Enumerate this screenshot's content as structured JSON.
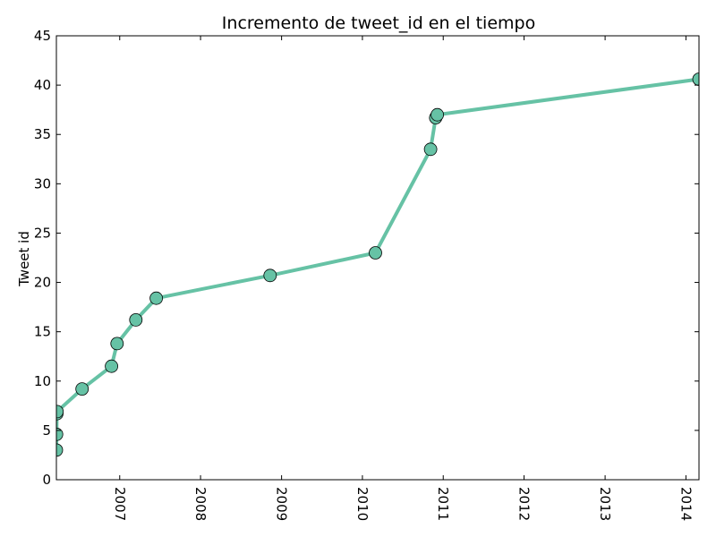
{
  "chart_data": {
    "type": "line",
    "title": "Incremento de tweet_id en el tiempo",
    "xlabel": "",
    "ylabel": "Tweet id",
    "x_axis_type": "date",
    "xlim": [
      "2006-03-21",
      "2014-03-01"
    ],
    "ylim": [
      0,
      45
    ],
    "x_tick_labels": [
      "2007",
      "2008",
      "2009",
      "2010",
      "2011",
      "2012",
      "2013",
      "2014"
    ],
    "x_tick_values": [
      "2007-01-01",
      "2008-01-01",
      "2009-01-01",
      "2010-01-01",
      "2011-01-01",
      "2012-01-01",
      "2013-01-01",
      "2014-01-01"
    ],
    "y_ticks": [
      0,
      5,
      10,
      15,
      20,
      25,
      30,
      35,
      40,
      45
    ],
    "grid": false,
    "legend": "none",
    "line_color": "#66c2a5",
    "marker_color": "#66c2a5",
    "series": [
      {
        "x": [
          "2006-03-21",
          "2006-03-22",
          "2006-03-23",
          "2006-03-24",
          "2006-07-15",
          "2006-11-25",
          "2006-12-20",
          "2007-03-15",
          "2007-06-15",
          "2008-11-10",
          "2010-03-01",
          "2010-11-05",
          "2010-11-28",
          "2010-12-05",
          "2014-03-01"
        ],
        "values": [
          3.0,
          4.6,
          6.7,
          6.9,
          9.2,
          11.5,
          13.8,
          16.2,
          18.4,
          20.7,
          23.0,
          33.5,
          36.7,
          37.0,
          40.6
        ]
      }
    ]
  }
}
